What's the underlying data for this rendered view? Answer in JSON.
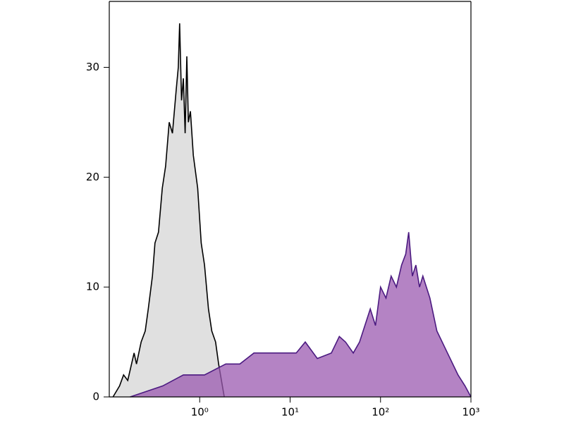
{
  "chart_data": {
    "type": "area",
    "log_x": true,
    "xlim": [
      0.1,
      1000
    ],
    "ylim": [
      0,
      36
    ],
    "xticks": [
      {
        "value": 1,
        "label": "10⁰"
      },
      {
        "value": 10,
        "label": "10¹"
      },
      {
        "value": 100,
        "label": "10²"
      },
      {
        "value": 1000,
        "label": "10³"
      }
    ],
    "yticks": [
      0,
      10,
      20,
      30
    ],
    "series": [
      {
        "color": "#000000",
        "fill": "#e0e0e0",
        "x": [
          0.11,
          0.13,
          0.144,
          0.16,
          0.188,
          0.2,
          0.225,
          0.25,
          0.27,
          0.3,
          0.32,
          0.35,
          0.386,
          0.42,
          0.46,
          0.5,
          0.55,
          0.58,
          0.6,
          0.63,
          0.66,
          0.69,
          0.72,
          0.75,
          0.79,
          0.85,
          0.95,
          1.04,
          1.13,
          1.25,
          1.36,
          1.5,
          1.62,
          1.87
        ],
        "values": [
          0,
          1,
          2,
          1.5,
          4,
          3,
          5,
          6,
          8,
          11,
          14,
          15,
          19,
          21,
          25,
          24,
          28,
          30,
          34,
          27,
          29,
          24,
          31,
          25,
          26,
          22,
          19,
          14,
          12,
          8,
          6,
          5,
          3,
          0
        ]
      },
      {
        "color": "#4b1a80",
        "fill": "#9b59b0",
        "x": [
          0.17,
          0.39,
          0.66,
          1.13,
          1.94,
          2.78,
          3.98,
          5.7,
          8.2,
          11.7,
          14.7,
          20,
          28.6,
          35,
          41,
          50,
          58.6,
          77,
          88,
          100,
          115,
          131,
          150,
          171,
          190,
          205,
          225,
          246,
          270,
          294,
          352,
          420,
          550,
          720,
          860,
          1000
        ],
        "values": [
          0,
          1,
          2,
          2,
          3,
          3,
          4,
          4,
          4,
          4,
          5,
          3.5,
          4,
          5.5,
          5,
          4,
          5,
          8,
          6.5,
          10,
          9,
          11,
          10,
          12,
          13,
          15,
          11,
          12,
          10,
          11,
          9,
          6,
          4,
          2,
          1,
          0
        ]
      }
    ]
  }
}
